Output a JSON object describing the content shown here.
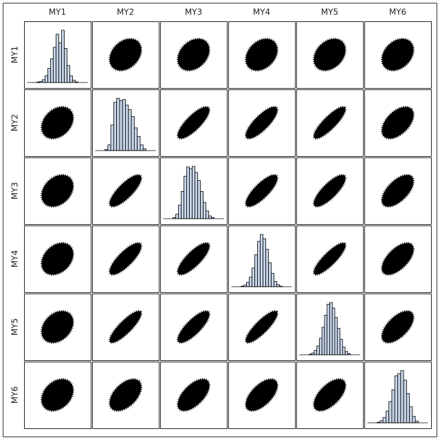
{
  "chart_data": {
    "type": "scatter_matrix",
    "variables": [
      "MY1",
      "MY2",
      "MY3",
      "MY4",
      "MY5",
      "MY6"
    ],
    "correlations": [
      [
        null,
        0.3,
        0.3,
        0.3,
        0.3,
        0.3
      ],
      [
        0.3,
        null,
        0.8,
        0.8,
        0.85,
        0.5
      ],
      [
        0.3,
        0.8,
        null,
        0.8,
        0.8,
        0.6
      ],
      [
        0.3,
        0.8,
        0.8,
        null,
        0.85,
        0.6
      ],
      [
        0.3,
        0.85,
        0.8,
        0.85,
        null,
        0.6
      ],
      [
        0.3,
        0.5,
        0.6,
        0.6,
        0.6,
        null
      ]
    ],
    "histograms": [
      [
        1,
        2,
        5,
        12,
        25,
        42,
        62,
        85,
        70,
        92,
        60,
        30,
        12,
        4,
        1
      ],
      [
        2,
        10,
        45,
        85,
        92,
        88,
        90,
        80,
        72,
        60,
        40,
        25,
        10,
        3
      ],
      [
        2,
        8,
        25,
        50,
        78,
        95,
        92,
        96,
        85,
        70,
        50,
        30,
        14,
        5,
        2
      ],
      [
        1,
        3,
        8,
        18,
        35,
        60,
        85,
        98,
        90,
        70,
        45,
        25,
        10,
        4,
        1
      ],
      [
        1,
        3,
        8,
        16,
        30,
        50,
        72,
        92,
        95,
        85,
        68,
        48,
        28,
        14,
        6,
        2
      ],
      [
        1,
        4,
        10,
        22,
        40,
        62,
        88,
        92,
        98,
        80,
        55,
        30,
        12,
        3
      ]
    ],
    "color": "#000000",
    "histogram_color": "#c6d4e8"
  }
}
